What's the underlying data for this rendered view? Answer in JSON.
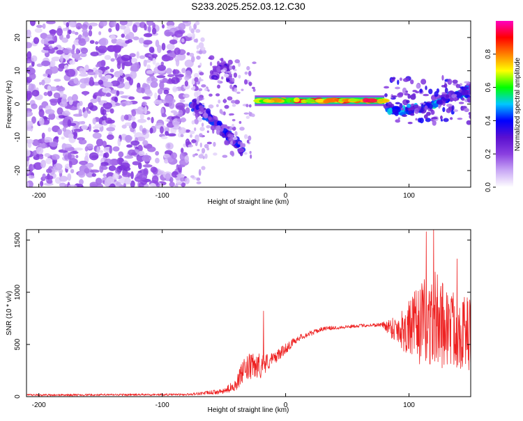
{
  "page_title": "S233.2025.252.03.12.C30",
  "chart_data": [
    {
      "type": "heatmap",
      "title": "S233.2025.252.03.12.C30",
      "xlabel": "Height of straight line (km)",
      "ylabel": "Frequency (Hz)",
      "xlim": [
        -210,
        150
      ],
      "ylim": [
        -25,
        25
      ],
      "xticks": [
        -200,
        -100,
        0,
        100
      ],
      "yticks": [
        -20,
        -10,
        0,
        10,
        20
      ],
      "colorbar": {
        "label": "Normalized spectral amplitude",
        "range": [
          0,
          1
        ],
        "ticks": [
          0.0,
          0.2,
          0.4,
          0.6,
          0.8
        ],
        "tick_labels": [
          "0.0",
          "0.2",
          "0.4",
          "0.6",
          "0.8"
        ],
        "colors": [
          "#ffffff",
          "#c9a8f5",
          "#8a3fe0",
          "#5a10d0",
          "#0000ff",
          "#00c8ff",
          "#00ff00",
          "#ffff00",
          "#ff8000",
          "#ff0000",
          "#ff00c0"
        ]
      },
      "features": {
        "noise_region_x": [
          -210,
          -78
        ],
        "noise_level": 0.15,
        "onset_x": -78,
        "descending_branch": [
          [
            -75,
            0
          ],
          [
            -65,
            -3
          ],
          [
            -55,
            -6
          ],
          [
            -45,
            -10
          ],
          [
            -35,
            -14
          ]
        ],
        "ascending_branch": [
          [
            -60,
            8
          ],
          [
            -50,
            12
          ],
          [
            -42,
            4
          ]
        ],
        "signal_band": {
          "x": [
            -25,
            80
          ],
          "frequency": 1,
          "level": 0.9
        },
        "late_band": [
          [
            80,
            -1
          ],
          [
            100,
            -2
          ],
          [
            120,
            0
          ],
          [
            140,
            3
          ],
          [
            150,
            4
          ]
        ]
      }
    },
    {
      "type": "line",
      "xlabel": "Height of straight line (km)",
      "ylabel": "SNR (10 * v/v)",
      "xlim": [
        -210,
        150
      ],
      "ylim": [
        0,
        1600
      ],
      "xticks": [
        -200,
        -100,
        0,
        100
      ],
      "yticks": [
        0,
        500,
        1000,
        1500
      ],
      "color": "#ee2222",
      "series": [
        {
          "name": "SNR",
          "envelope": [
            {
              "x": -210,
              "mean": 15,
              "noise": 10
            },
            {
              "x": -80,
              "mean": 20,
              "noise": 10
            },
            {
              "x": -70,
              "mean": 30,
              "noise": 15
            },
            {
              "x": -50,
              "mean": 50,
              "noise": 25
            },
            {
              "x": -40,
              "mean": 120,
              "noise": 60
            },
            {
              "x": -35,
              "mean": 230,
              "noise": 110
            },
            {
              "x": -30,
              "mean": 280,
              "noise": 130
            },
            {
              "x": -20,
              "mean": 300,
              "noise": 120
            },
            {
              "x": -10,
              "mean": 360,
              "noise": 60
            },
            {
              "x": 0,
              "mean": 460,
              "noise": 50
            },
            {
              "x": 10,
              "mean": 560,
              "noise": 30
            },
            {
              "x": 30,
              "mean": 650,
              "noise": 20
            },
            {
              "x": 60,
              "mean": 680,
              "noise": 15
            },
            {
              "x": 78,
              "mean": 690,
              "noise": 20
            },
            {
              "x": 90,
              "mean": 650,
              "noise": 150
            },
            {
              "x": 100,
              "mean": 650,
              "noise": 280
            },
            {
              "x": 110,
              "mean": 700,
              "noise": 400
            },
            {
              "x": 120,
              "mean": 750,
              "noise": 480
            },
            {
              "x": 135,
              "mean": 650,
              "noise": 380
            },
            {
              "x": 150,
              "mean": 600,
              "noise": 350
            }
          ],
          "spikes": [
            {
              "x": -18,
              "y": 820
            },
            {
              "x": 114,
              "y": 1580
            },
            {
              "x": 120,
              "y": 1620
            },
            {
              "x": 139,
              "y": 1320
            }
          ]
        }
      ]
    }
  ]
}
